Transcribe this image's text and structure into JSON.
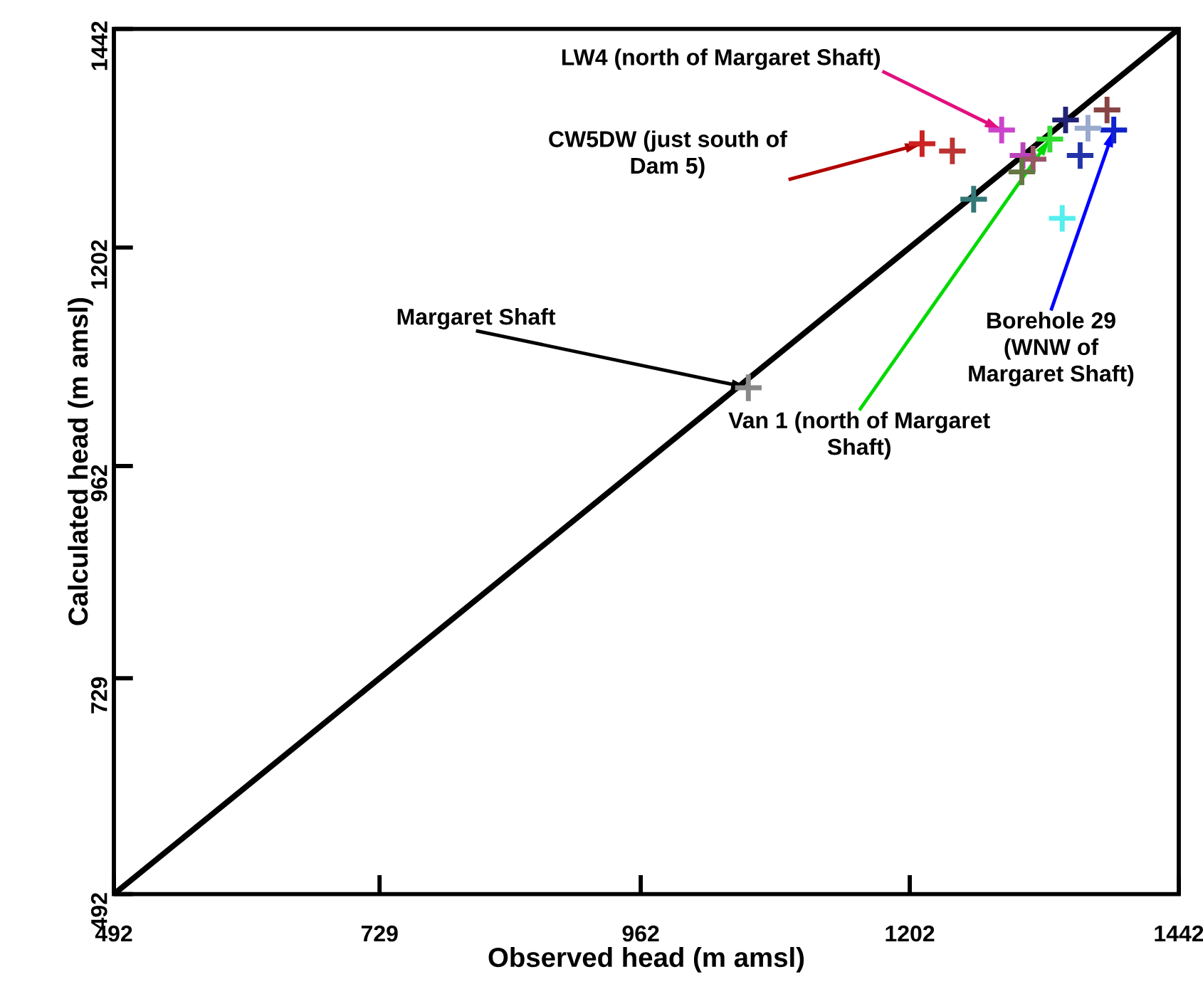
{
  "chart_data": {
    "type": "scatter",
    "xlabel": "Observed head (m amsl)",
    "ylabel": "Calculated head (m amsl)",
    "xlim": [
      492,
      1442
    ],
    "ylim": [
      492,
      1442
    ],
    "xticks": [
      492,
      729,
      962,
      1202,
      1442
    ],
    "yticks": [
      492,
      729,
      962,
      1202,
      1442
    ],
    "marker": "cross",
    "series": [
      {
        "type": "line",
        "color": "#000000",
        "x": [
          492,
          1442
        ],
        "values": [
          492,
          1442
        ],
        "marker": "none"
      },
      {
        "x": [
          1284,
          1213,
          1240,
          1303,
          1312,
          1327,
          1341,
          1354,
          1384,
          1378,
          1259,
          1338,
          1302,
          1361,
          1058
        ],
        "values": [
          1331,
          1316,
          1308,
          1303,
          1299,
          1321,
          1342,
          1303,
          1331,
          1353,
          1255,
          1234,
          1285,
          1333,
          1048
        ],
        "colors": [
          "#cc44cc",
          "#cc2222",
          "#bb3333",
          "#bb44bb",
          "#995566",
          "#33dd33",
          "#222277",
          "#2233aa",
          "#1122cc",
          "#884444",
          "#337777",
          "#55eeee",
          "#667744",
          "#99aacc",
          "#888888"
        ]
      }
    ],
    "annotations": [
      {
        "text": "LW4 (north of Margaret Shaft)",
        "x": 1284,
        "y": 1331
      },
      {
        "text": "CW5DW (just south of Dam 5)",
        "x": 1213,
        "y": 1316
      },
      {
        "text": "Margaret Shaft",
        "x": 1058,
        "y": 1048
      },
      {
        "text": "Borehole 29 (WNW of Margaret Shaft)",
        "x": 1384,
        "y": 1331
      },
      {
        "text": "Van 1 (north of Margaret Shaft)",
        "x": 1327,
        "y": 1321
      }
    ]
  }
}
